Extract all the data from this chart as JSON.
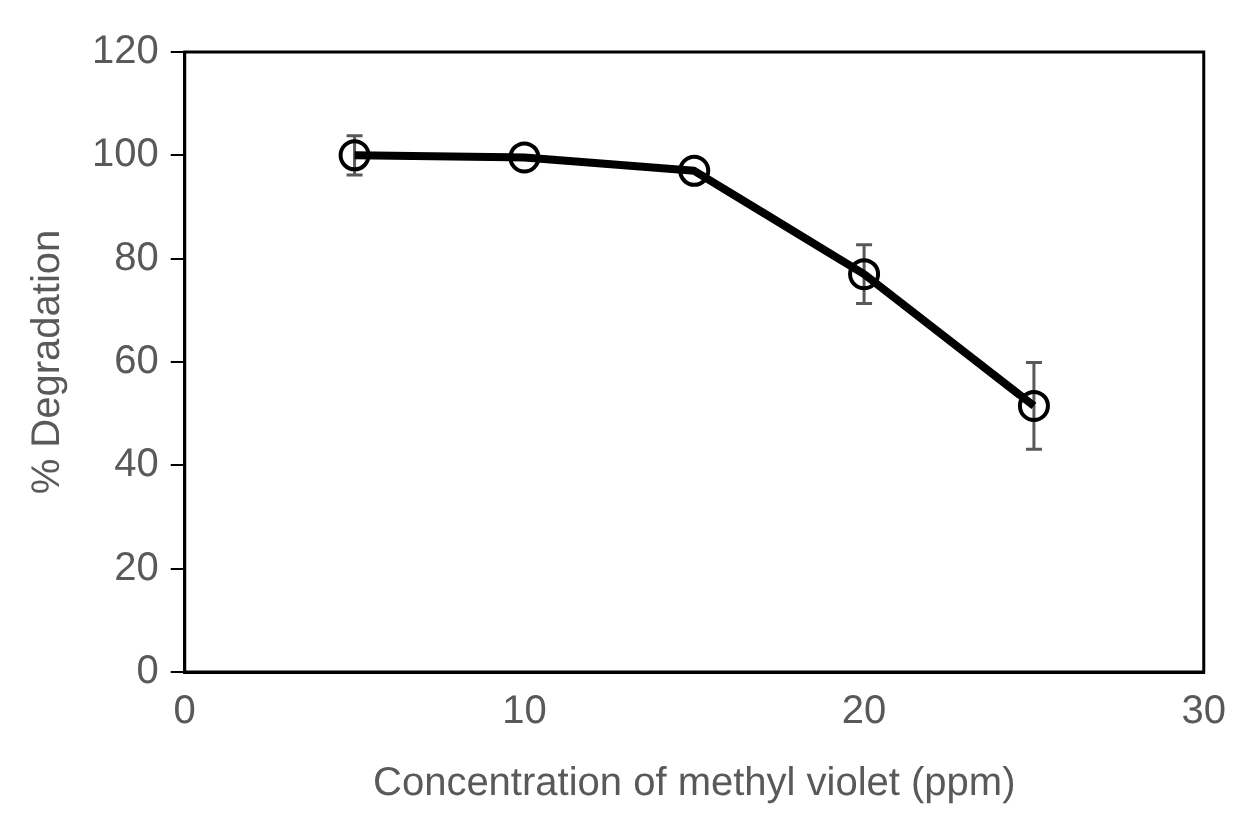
{
  "chart_data": {
    "type": "line",
    "xlabel": "Concentration of methyl violet (ppm)",
    "ylabel": "% Degradation",
    "x": [
      5,
      10,
      15,
      20,
      25
    ],
    "series": [
      {
        "color": "#000000",
        "values": [
          100,
          99.6,
          97,
          77,
          51.5
        ],
        "errors": [
          3.8,
          null,
          null,
          5.7,
          8.4
        ]
      }
    ],
    "xlim": [
      0,
      30
    ],
    "xticks": [
      0,
      10,
      20,
      30
    ],
    "ylim": [
      0,
      120
    ],
    "yticks": [
      0,
      20,
      40,
      60,
      80,
      100,
      120
    ],
    "grid": false,
    "legend": false,
    "marker": "circle",
    "line_style": "solid"
  }
}
